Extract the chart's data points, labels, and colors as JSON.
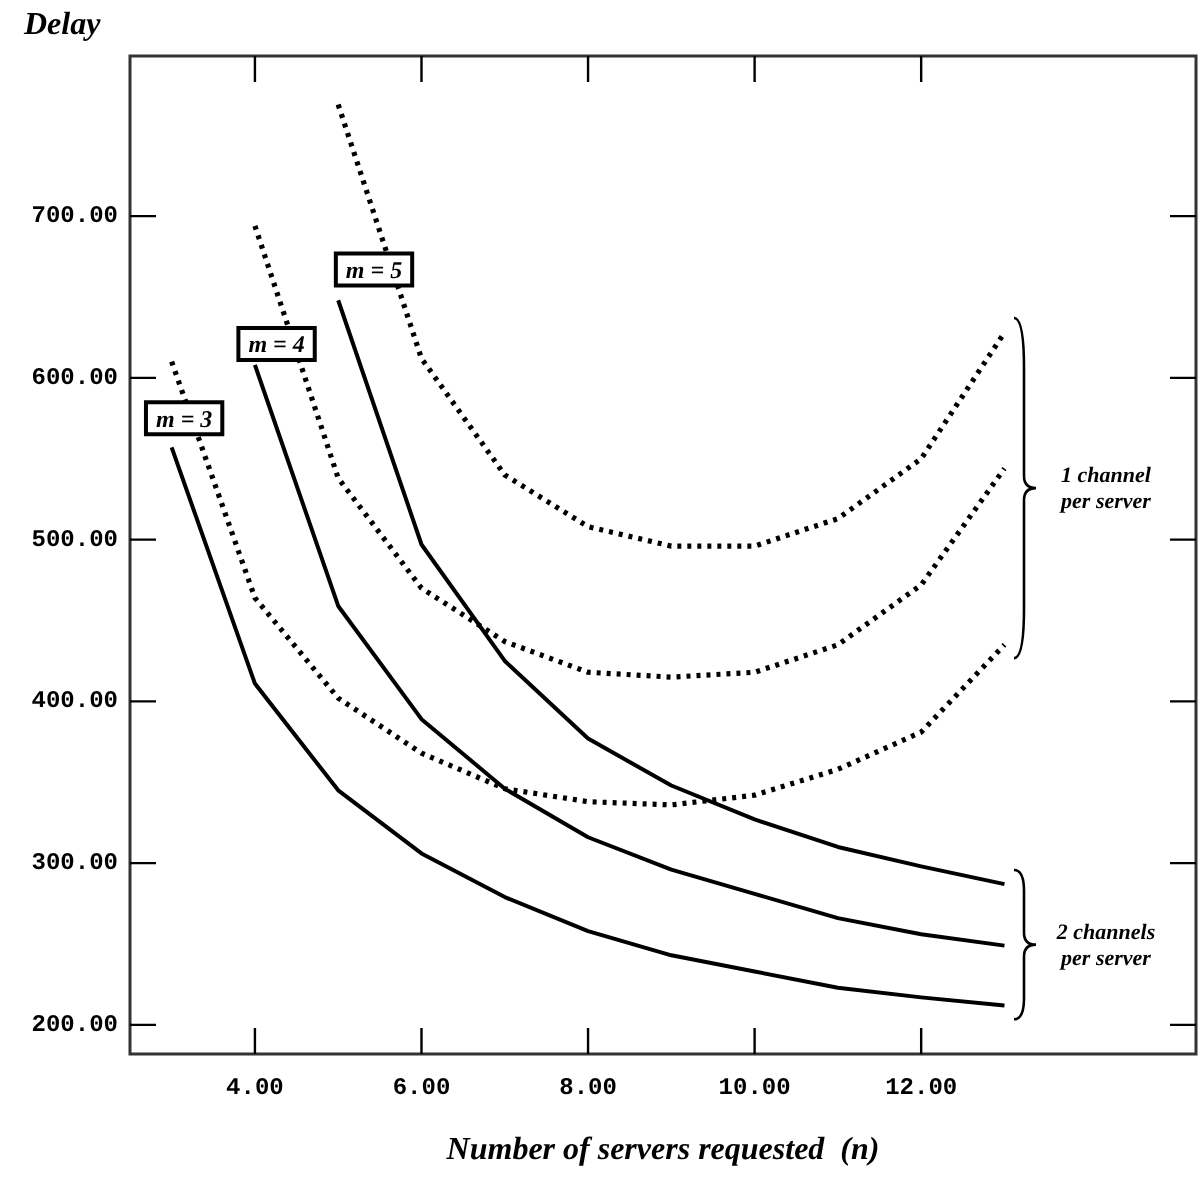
{
  "chart_data": {
    "type": "line",
    "xlabel": "Number of servers requested  (n)",
    "ylabel": "Delay",
    "xlim": [
      2.5,
      15.3
    ],
    "ylim": [
      182,
      799
    ],
    "xticks": [
      {
        "value": 4,
        "label": "4.00"
      },
      {
        "value": 6,
        "label": "6.00"
      },
      {
        "value": 8,
        "label": "8.00"
      },
      {
        "value": 10,
        "label": "10.00"
      },
      {
        "value": 12,
        "label": "12.00"
      }
    ],
    "yticks": [
      {
        "value": 200,
        "label": "200.00"
      },
      {
        "value": 300,
        "label": "300.00"
      },
      {
        "value": 400,
        "label": "400.00"
      },
      {
        "value": 500,
        "label": "500.00"
      },
      {
        "value": 600,
        "label": "600.00"
      },
      {
        "value": 700,
        "label": "700.00"
      }
    ],
    "grid": false,
    "legend": false,
    "marker": "none",
    "series": [
      {
        "color": "#000000",
        "line_style": "dotted",
        "x": [
          3,
          4,
          5,
          6,
          7,
          8,
          9,
          10,
          11,
          12,
          13
        ],
        "values": [
          610,
          464,
          402,
          368,
          346,
          338,
          336,
          342,
          358,
          381,
          435
        ]
      },
      {
        "color": "#000000",
        "line_style": "dotted",
        "x": [
          4,
          5,
          6,
          7,
          8,
          9,
          10,
          11,
          12,
          13
        ],
        "values": [
          694,
          538,
          470,
          437,
          418,
          415,
          418,
          435,
          472,
          544
        ]
      },
      {
        "color": "#000000",
        "line_style": "dotted",
        "x": [
          5,
          6,
          7,
          8,
          9,
          10,
          11,
          12,
          13
        ],
        "values": [
          769,
          612,
          540,
          508,
          496,
          496,
          513,
          550,
          628
        ]
      },
      {
        "color": "#000000",
        "line_style": "solid",
        "x": [
          3,
          4,
          5,
          6,
          7,
          8,
          9,
          10,
          11,
          12,
          13
        ],
        "values": [
          557,
          411,
          345,
          306,
          279,
          258,
          243,
          233,
          223,
          217,
          212
        ]
      },
      {
        "color": "#000000",
        "line_style": "solid",
        "x": [
          4,
          5,
          6,
          7,
          8,
          9,
          10,
          11,
          12,
          13
        ],
        "values": [
          608,
          459,
          389,
          346,
          316,
          296,
          281,
          266,
          256,
          249
        ]
      },
      {
        "color": "#000000",
        "line_style": "solid",
        "x": [
          5,
          6,
          7,
          8,
          9,
          10,
          11,
          12,
          13
        ],
        "values": [
          648,
          497,
          425,
          377,
          348,
          327,
          310,
          298,
          287
        ]
      }
    ],
    "annotations": [
      {
        "text": "m = 3",
        "x": 3.15,
        "y": 575
      },
      {
        "text": "m = 4",
        "x": 4.26,
        "y": 621
      },
      {
        "text": "m = 5",
        "x": 5.43,
        "y": 667
      },
      "1 channel per server",
      "2 channels per server"
    ]
  }
}
